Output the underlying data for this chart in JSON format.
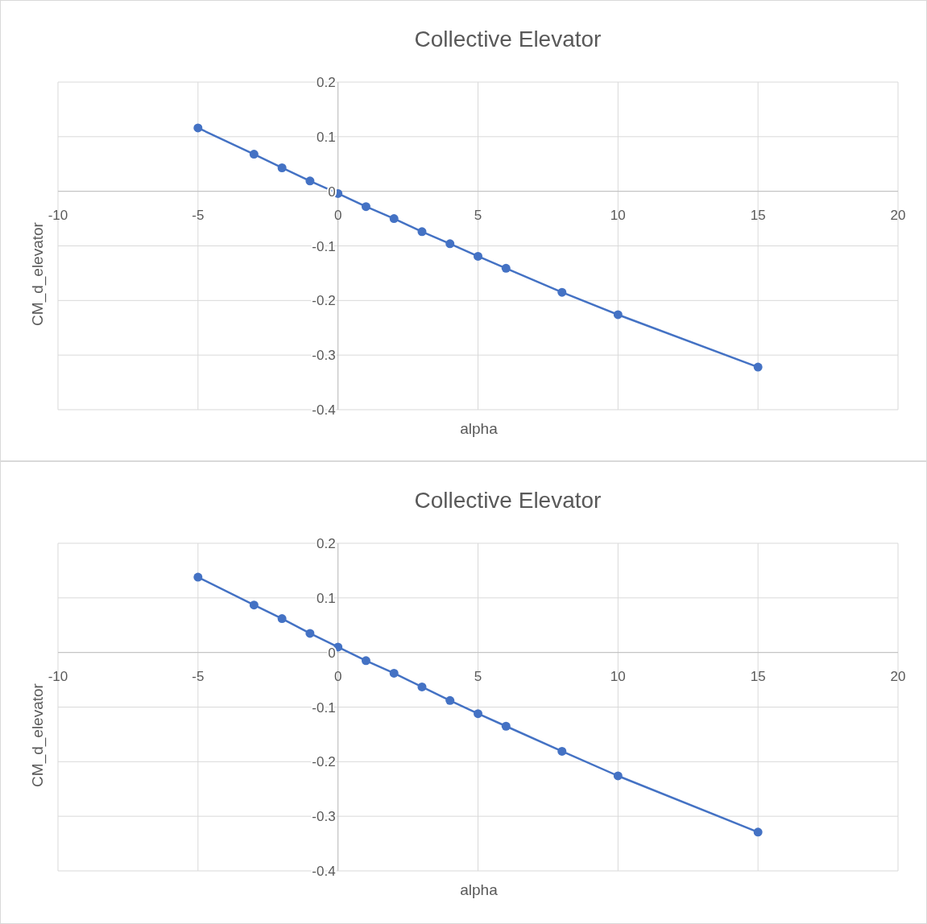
{
  "chart_data": [
    {
      "type": "line",
      "title": "Collective Elevator",
      "xlabel": "alpha",
      "ylabel": "CM_d_elevator",
      "x": [
        -5,
        -3,
        -2,
        -1,
        0,
        1,
        2,
        3,
        4,
        5,
        6,
        8,
        10,
        15
      ],
      "series": [
        {
          "color": "#4472c4",
          "values": [
            0.116,
            0.068,
            0.043,
            0.019,
            -0.004,
            -0.028,
            -0.05,
            -0.074,
            -0.096,
            -0.119,
            -0.141,
            -0.185,
            -0.226,
            -0.322
          ]
        }
      ],
      "xlim": [
        -10,
        20
      ],
      "xticks": [
        -10,
        -5,
        0,
        5,
        10,
        15,
        20
      ],
      "ylim": [
        -0.4,
        0.2
      ],
      "yticks": [
        -0.4,
        -0.3,
        -0.2,
        -0.1,
        0,
        0.1,
        0.2
      ],
      "grid": true,
      "marker": "circle"
    },
    {
      "type": "line",
      "title": "Collective Elevator",
      "xlabel": "alpha",
      "ylabel": "CM_d_elevator",
      "x": [
        -5,
        -3,
        -2,
        -1,
        0,
        1,
        2,
        3,
        4,
        5,
        6,
        8,
        10,
        15
      ],
      "series": [
        {
          "color": "#4472c4",
          "values": [
            0.138,
            0.087,
            0.062,
            0.035,
            0.01,
            -0.015,
            -0.038,
            -0.063,
            -0.088,
            -0.112,
            -0.135,
            -0.181,
            -0.226,
            -0.329
          ]
        }
      ],
      "xlim": [
        -10,
        20
      ],
      "xticks": [
        -10,
        -5,
        0,
        5,
        10,
        15,
        20
      ],
      "ylim": [
        -0.4,
        0.2
      ],
      "yticks": [
        -0.4,
        -0.3,
        -0.2,
        -0.1,
        0,
        0.1,
        0.2
      ],
      "grid": true,
      "marker": "circle"
    }
  ]
}
